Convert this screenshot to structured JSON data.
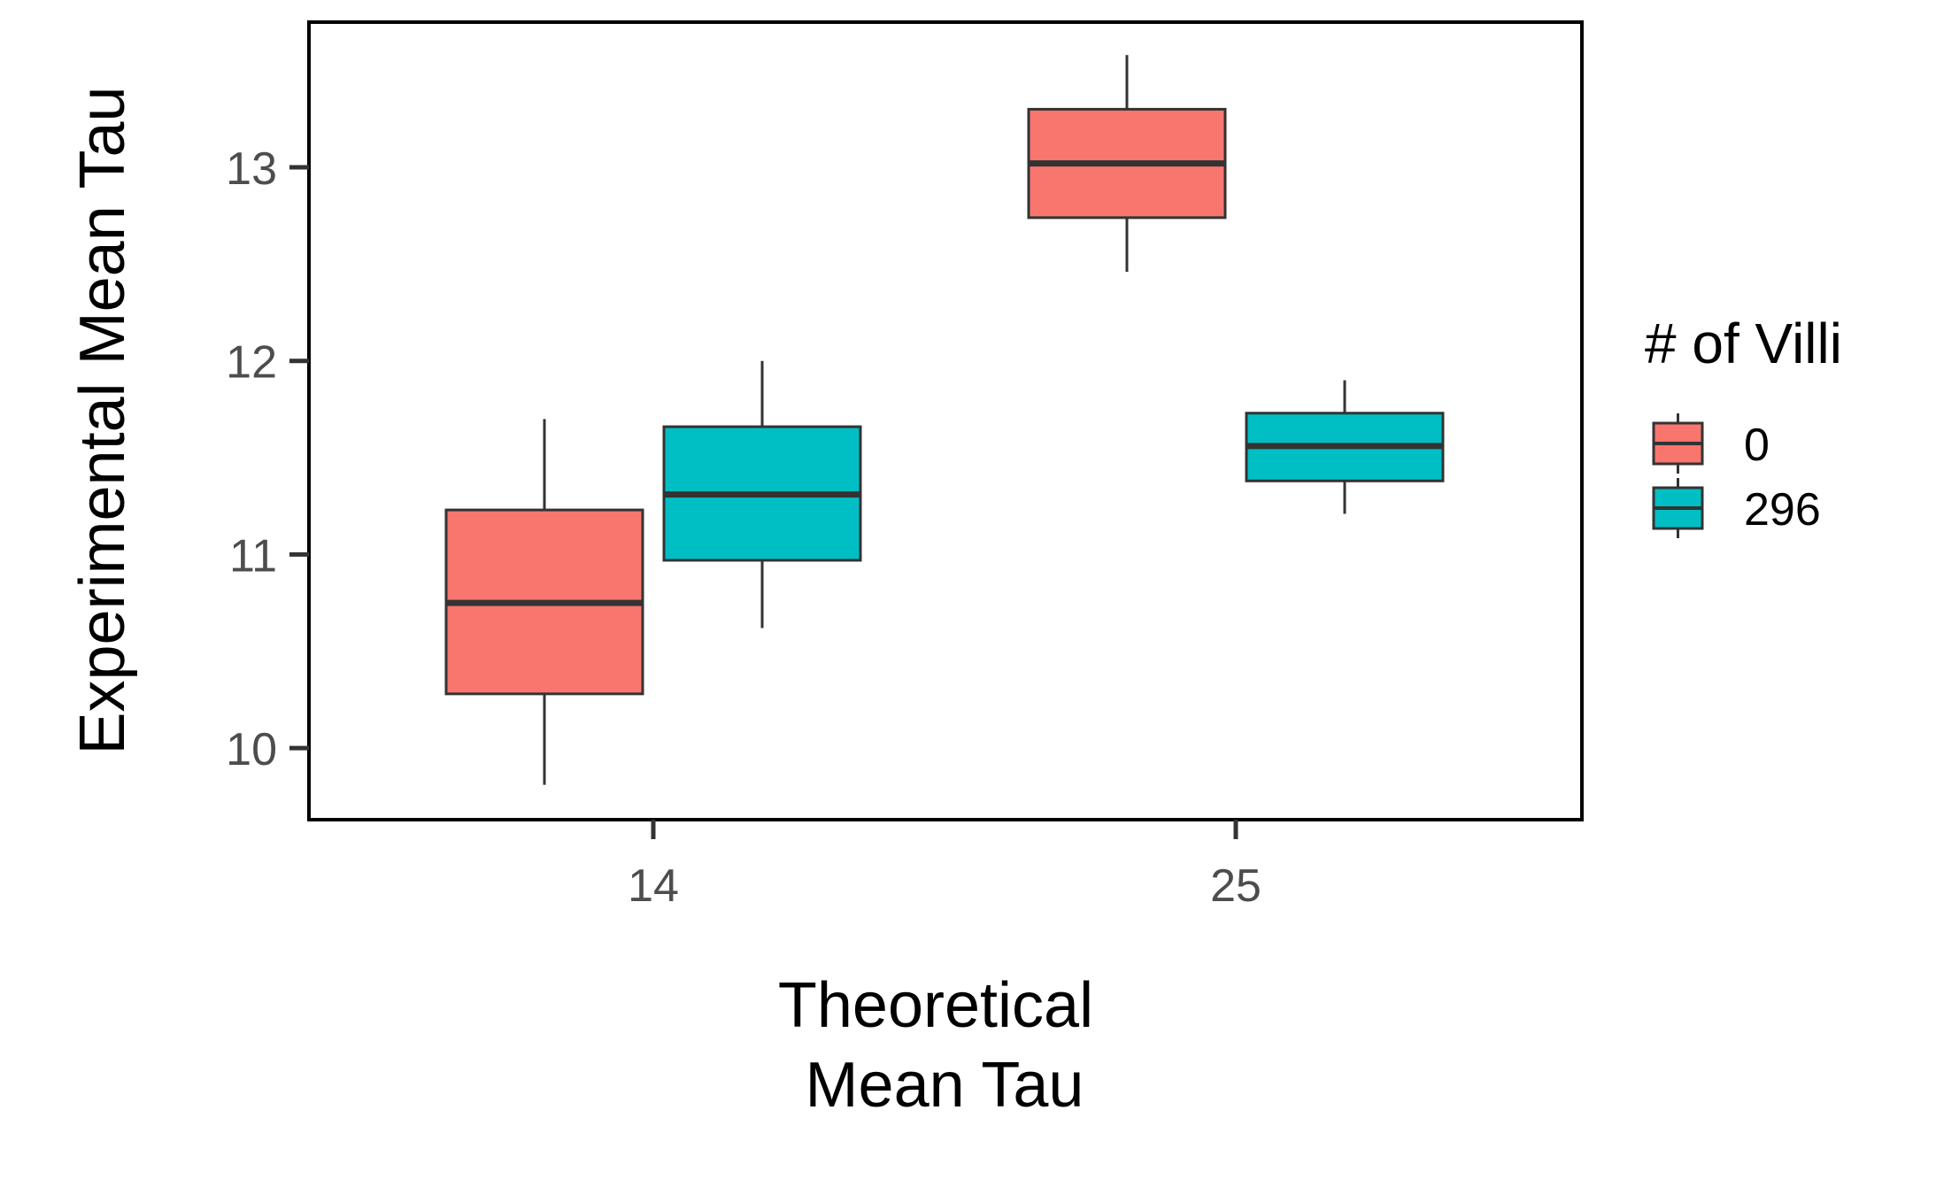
{
  "chart_data": {
    "type": "boxplot",
    "xlabel_lines": [
      "Theoretical",
      "Mean Tau"
    ],
    "ylabel": "Experimental Mean Tau",
    "categories": [
      "14",
      "25"
    ],
    "ylim": [
      9.63,
      13.75
    ],
    "yticks": [
      10,
      11,
      12,
      13
    ],
    "ytick_labels": [
      "10",
      "11",
      "12",
      "13"
    ],
    "legend": {
      "title": "# of Villi",
      "position": "right",
      "entries": [
        {
          "label": "0",
          "color": "#F8766D"
        },
        {
          "label": "296",
          "color": "#00BFC4"
        }
      ]
    },
    "series": [
      {
        "name": "0",
        "color": "#F8766D",
        "boxes": [
          {
            "category": "14",
            "min": 9.81,
            "q1": 10.28,
            "median": 10.75,
            "q3": 11.23,
            "max": 11.7
          },
          {
            "category": "25",
            "min": 12.46,
            "q1": 12.74,
            "median": 13.02,
            "q3": 13.3,
            "max": 13.58
          }
        ]
      },
      {
        "name": "296",
        "color": "#00BFC4",
        "boxes": [
          {
            "category": "14",
            "min": 10.62,
            "q1": 10.97,
            "median": 11.31,
            "q3": 11.66,
            "max": 12.0
          },
          {
            "category": "25",
            "min": 11.21,
            "q1": 11.38,
            "median": 11.56,
            "q3": 11.73,
            "max": 11.9
          }
        ]
      }
    ]
  }
}
